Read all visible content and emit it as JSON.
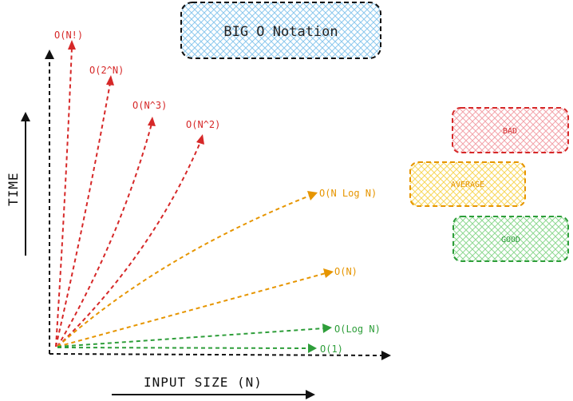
{
  "title": "BIG O Notation",
  "axes": {
    "y_label": "TIME",
    "x_label": "INPUT SIZE (N)"
  },
  "complexities": [
    {
      "id": "factorial",
      "label": "O(N!)",
      "category": "bad"
    },
    {
      "id": "exponential",
      "label": "O(2^N)",
      "category": "bad"
    },
    {
      "id": "cubic",
      "label": "O(N^3)",
      "category": "bad"
    },
    {
      "id": "quadratic",
      "label": "O(N^2)",
      "category": "bad"
    },
    {
      "id": "nlogn",
      "label": "O(N Log N)",
      "category": "average"
    },
    {
      "id": "linear",
      "label": "O(N)",
      "category": "average"
    },
    {
      "id": "logarithmic",
      "label": "O(Log N)",
      "category": "good"
    },
    {
      "id": "constant",
      "label": "O(1)",
      "category": "good"
    }
  ],
  "legend": [
    {
      "id": "bad",
      "label": "BAD",
      "color": "#d62828",
      "fill": "#f7b3b8"
    },
    {
      "id": "average",
      "label": "AVERAGE",
      "color": "#e69500",
      "fill": "#fde68a"
    },
    {
      "id": "good",
      "label": "GOOD",
      "color": "#2e9e3a",
      "fill": "#a7e3a9"
    }
  ],
  "colors": {
    "bad": "#d62828",
    "average": "#e69500",
    "good": "#2e9e3a",
    "title_fill": "#9fd0f0",
    "axis": "#111111"
  }
}
